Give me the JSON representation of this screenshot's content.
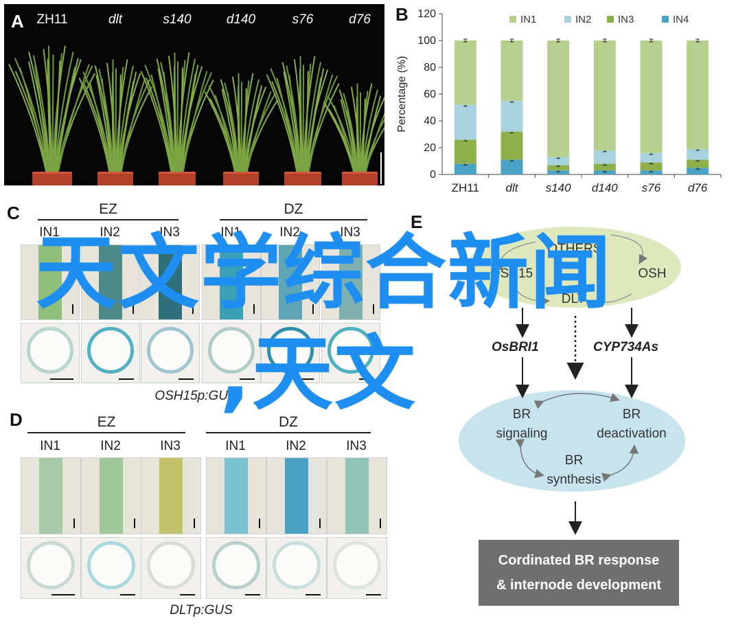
{
  "panels": {
    "a_letter": "A",
    "b_letter": "B",
    "c_letter": "C",
    "d_letter": "D",
    "e_letter": "E"
  },
  "panel_a": {
    "plants": [
      {
        "label": "ZH11",
        "italic": false
      },
      {
        "label": "dlt",
        "italic": true
      },
      {
        "label": "s140",
        "italic": true
      },
      {
        "label": "d140",
        "italic": true
      },
      {
        "label": "s76",
        "italic": true
      },
      {
        "label": "d76",
        "italic": true
      }
    ]
  },
  "chart_data": {
    "type": "bar",
    "stacked": true,
    "categories": [
      "ZH11",
      "dlt",
      "s140",
      "d140",
      "s76",
      "d76"
    ],
    "italic_categories": [
      false,
      true,
      true,
      true,
      true,
      true
    ],
    "ylabel": "Percentage (%)",
    "ylim": [
      0,
      120
    ],
    "yticks": [
      0,
      20,
      40,
      60,
      80,
      100,
      120
    ],
    "legend_position": "top",
    "series": [
      {
        "name": "IN4",
        "color": "#4aa3c4",
        "values": [
          8,
          11,
          3,
          3,
          3,
          5
        ]
      },
      {
        "name": "IN3",
        "color": "#8eb04a",
        "values": [
          18,
          21,
          4,
          5,
          6,
          6
        ]
      },
      {
        "name": "IN2",
        "color": "#a9d2df",
        "values": [
          26,
          23,
          6,
          10,
          7,
          8
        ]
      },
      {
        "name": "IN1",
        "color": "#b6cf8d",
        "values": [
          48,
          45,
          87,
          82,
          84,
          81
        ]
      }
    ]
  },
  "panel_c": {
    "groups": [
      "EZ",
      "DZ"
    ],
    "internodes": [
      "IN1",
      "IN2",
      "IN3",
      "IN1",
      "IN2",
      "IN3"
    ],
    "caption": "OSH15p:GUS"
  },
  "panel_d": {
    "groups": [
      "EZ",
      "DZ"
    ],
    "internodes": [
      "IN1",
      "IN2",
      "IN3",
      "IN1",
      "IN2",
      "IN3"
    ],
    "caption": "DLTp:GUS"
  },
  "panel_e": {
    "others": "OTHERS",
    "osh15": "OSH15",
    "osh_right": "OSH",
    "dlt": "DLT",
    "gene_left": "OsBRI1",
    "gene_right": "CYP734As",
    "br_signaling": [
      "BR",
      "signaling"
    ],
    "br_deactivation": [
      "BR",
      "deactivation"
    ],
    "br_synthesis": [
      "BR",
      "synthesis"
    ],
    "response": [
      "Cordinated BR response",
      "& internode development"
    ]
  },
  "watermark": {
    "line1": "天文学综合新闻",
    "line2": ",天文"
  }
}
